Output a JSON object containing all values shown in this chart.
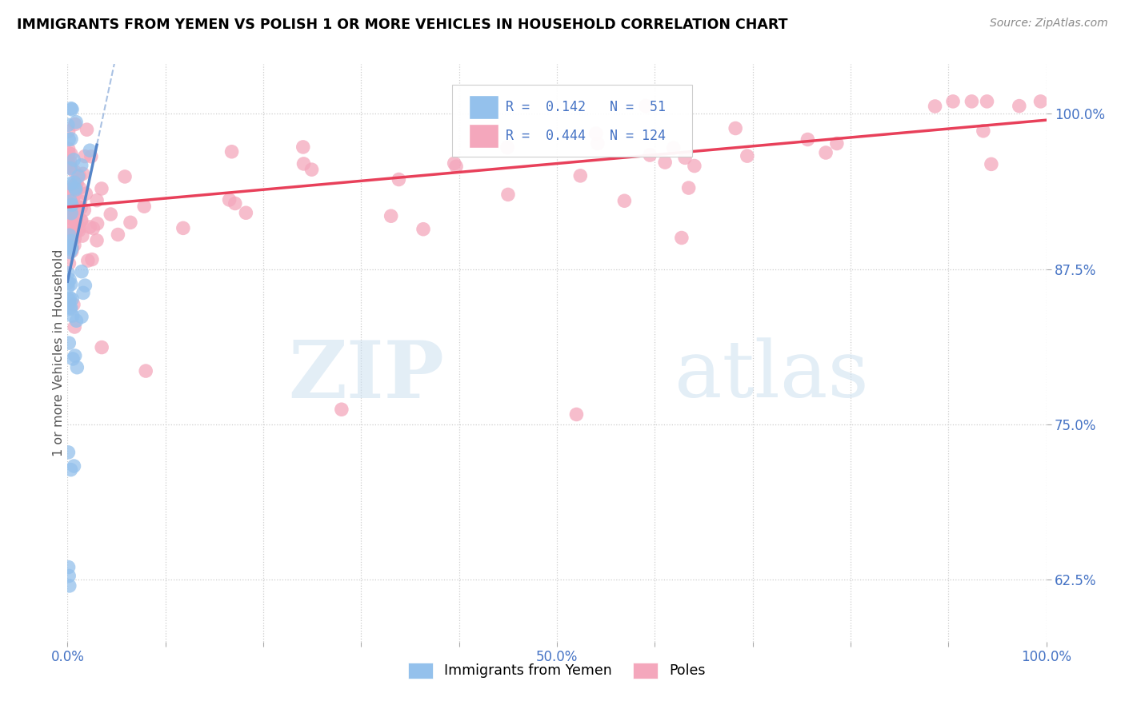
{
  "title": "IMMIGRANTS FROM YEMEN VS POLISH 1 OR MORE VEHICLES IN HOUSEHOLD CORRELATION CHART",
  "source": "Source: ZipAtlas.com",
  "ylabel": "1 or more Vehicles in Household",
  "xlim": [
    0.0,
    1.0
  ],
  "ylim": [
    0.575,
    1.04
  ],
  "xtick_positions": [
    0.0,
    0.1,
    0.2,
    0.3,
    0.4,
    0.5,
    0.6,
    0.7,
    0.8,
    0.9,
    1.0
  ],
  "xticklabels": [
    "0.0%",
    "",
    "",
    "",
    "",
    "50.0%",
    "",
    "",
    "",
    "",
    "100.0%"
  ],
  "ytick_positions": [
    0.625,
    0.75,
    0.875,
    1.0
  ],
  "yticklabels": [
    "62.5%",
    "75.0%",
    "87.5%",
    "100.0%"
  ],
  "blue_color": "#94C1EC",
  "pink_color": "#F4A7BC",
  "blue_line_color": "#5585C8",
  "pink_line_color": "#E8405A",
  "R_yemen": 0.142,
  "N_yemen": 51,
  "R_poles": 0.444,
  "N_poles": 124,
  "watermark_zip": "ZIP",
  "watermark_atlas": "atlas",
  "blue_line_x": [
    0.0,
    0.03
  ],
  "blue_line_y": [
    0.865,
    0.975
  ],
  "pink_line_x": [
    0.0,
    1.0
  ],
  "pink_line_y": [
    0.925,
    0.995
  ]
}
